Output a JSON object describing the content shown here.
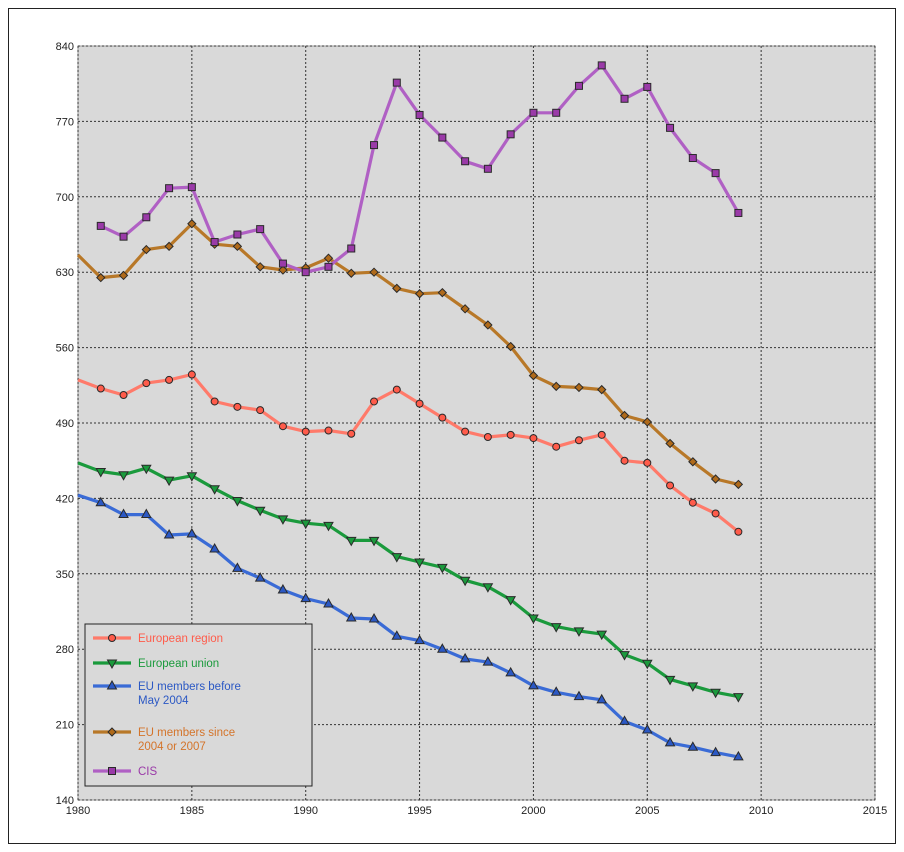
{
  "chart_data": {
    "type": "line",
    "title": "",
    "xlabel": "",
    "ylabel": "",
    "xlim": [
      1980,
      2015
    ],
    "ylim": [
      140,
      840
    ],
    "xticks": [
      1980,
      1985,
      1990,
      1995,
      2000,
      2005,
      2010,
      2015
    ],
    "yticks": [
      140,
      210,
      280,
      350,
      420,
      490,
      560,
      630,
      700,
      770,
      840
    ],
    "xtick_labels": [
      "1980",
      "1985",
      "1990",
      "1995",
      "2000",
      "2005",
      "2010",
      "2015"
    ],
    "ytick_labels": [
      "140",
      "210",
      "280",
      "350",
      "420",
      "490",
      "560",
      "630",
      "700",
      "770",
      "840"
    ],
    "grid": true,
    "legend_position": "bottom-left",
    "series": [
      {
        "name": "European region",
        "color": "#ff5b4a",
        "line_color": "#ff7a6a",
        "marker": "circle",
        "x": [
          1980,
          1981,
          1982,
          1983,
          1984,
          1985,
          1986,
          1987,
          1988,
          1989,
          1990,
          1991,
          1992,
          1993,
          1994,
          1995,
          1996,
          1997,
          1998,
          1999,
          2000,
          2001,
          2002,
          2003,
          2004,
          2005,
          2006,
          2007,
          2008,
          2009
        ],
        "values": [
          530,
          522,
          516,
          527,
          530,
          535,
          510,
          505,
          502,
          487,
          482,
          483,
          480,
          510,
          521,
          508,
          495,
          482,
          477,
          479,
          476,
          468,
          474,
          479,
          455,
          453,
          432,
          416,
          406,
          389
        ],
        "marker_from_index": 1
      },
      {
        "name": "European union",
        "color": "#1a9a3c",
        "line_color": "#1a9a3c",
        "marker": "triangle-down",
        "x": [
          1980,
          1981,
          1982,
          1983,
          1984,
          1985,
          1986,
          1987,
          1988,
          1989,
          1990,
          1991,
          1992,
          1993,
          1994,
          1995,
          1996,
          1997,
          1998,
          1999,
          2000,
          2001,
          2002,
          2003,
          2004,
          2005,
          2006,
          2007,
          2008,
          2009
        ],
        "values": [
          453,
          445,
          442,
          448,
          437,
          441,
          429,
          418,
          409,
          401,
          397,
          395,
          381,
          381,
          366,
          361,
          356,
          344,
          338,
          326,
          309,
          301,
          297,
          294,
          275,
          267,
          252,
          246,
          240,
          236
        ],
        "marker_from_index": 1
      },
      {
        "name": "EU members before May 2004",
        "color": "#2b58c4",
        "line_color": "#3a6bd6",
        "marker": "triangle-up",
        "x": [
          1980,
          1981,
          1982,
          1983,
          1984,
          1985,
          1986,
          1987,
          1988,
          1989,
          1990,
          1991,
          1992,
          1993,
          1994,
          1995,
          1996,
          1997,
          1998,
          1999,
          2000,
          2001,
          2002,
          2003,
          2004,
          2005,
          2006,
          2007,
          2008,
          2009
        ],
        "values": [
          423,
          416,
          405,
          405,
          386,
          387,
          373,
          355,
          346,
          335,
          327,
          322,
          309,
          308,
          292,
          288,
          280,
          271,
          268,
          258,
          246,
          240,
          236,
          233,
          213,
          205,
          193,
          189,
          184,
          180
        ],
        "marker_from_index": 1
      },
      {
        "name": "EU members since 2004 or 2007",
        "color": "#b06a1a",
        "line_color": "#b87828",
        "marker": "diamond",
        "x": [
          1980,
          1981,
          1982,
          1983,
          1984,
          1985,
          1986,
          1987,
          1988,
          1989,
          1990,
          1991,
          1992,
          1993,
          1994,
          1995,
          1996,
          1997,
          1998,
          1999,
          2000,
          2001,
          2002,
          2003,
          2004,
          2005,
          2006,
          2007,
          2008,
          2009
        ],
        "values": [
          646,
          625,
          627,
          651,
          654,
          675,
          656,
          654,
          635,
          632,
          634,
          643,
          629,
          630,
          615,
          610,
          611,
          596,
          581,
          561,
          534,
          524,
          523,
          521,
          497,
          491,
          471,
          454,
          438,
          433
        ],
        "marker_from_index": 1
      },
      {
        "name": "CIS",
        "color": "#9a3aa8",
        "line_color": "#b060c4",
        "marker": "square",
        "x": [
          1981,
          1982,
          1983,
          1984,
          1985,
          1986,
          1987,
          1988,
          1989,
          1990,
          1991,
          1992,
          1993,
          1994,
          1995,
          1996,
          1997,
          1998,
          1999,
          2000,
          2001,
          2002,
          2003,
          2004,
          2005,
          2006,
          2007,
          2008,
          2009
        ],
        "values": [
          673,
          663,
          681,
          708,
          709,
          658,
          665,
          670,
          638,
          630,
          635,
          652,
          748,
          806,
          776,
          755,
          733,
          726,
          758,
          778,
          778,
          803,
          822,
          791,
          802,
          764,
          736,
          722,
          685
        ],
        "marker_from_index": 0
      }
    ],
    "legend": [
      {
        "lines": [
          "European region"
        ],
        "text_color": "#ff5b4a"
      },
      {
        "lines": [
          "European union"
        ],
        "text_color": "#1a9a3c"
      },
      {
        "lines": [
          "EU members before",
          "May 2004"
        ],
        "text_color": "#2b58c4"
      },
      {
        "lines": [
          "EU members since",
          "2004 or 2007"
        ],
        "text_color": "#d4742a"
      },
      {
        "lines": [
          "CIS"
        ],
        "text_color": "#9a3aa8"
      }
    ]
  },
  "colors": {
    "plot_background": "#d9d9d9",
    "grid": "#333333"
  }
}
